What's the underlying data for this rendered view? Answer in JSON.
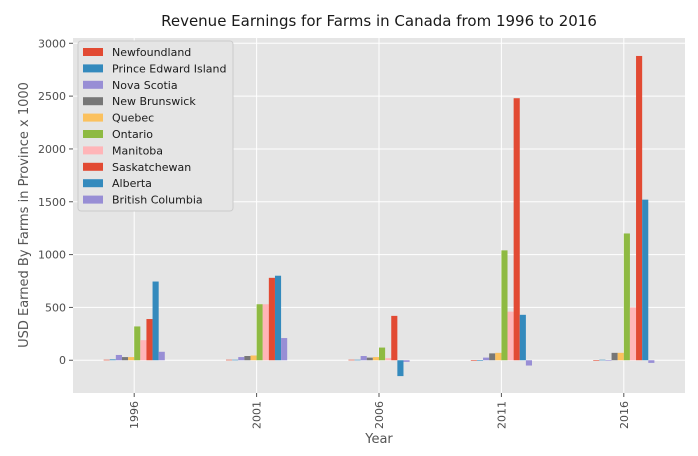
{
  "chart_data": {
    "type": "bar",
    "title": "Revenue Earnings for Farms in Canada from 1996 to 2016",
    "xlabel": "Year",
    "ylabel": "USD Earned By Farms in Province x 1000",
    "categories": [
      "1996",
      "2001",
      "2006",
      "2011",
      "2016"
    ],
    "yticks": [
      0,
      500,
      1000,
      1500,
      2000,
      2500,
      3000
    ],
    "ylim": [
      -310,
      3050
    ],
    "grid": true,
    "legend_position": "top-left",
    "series": [
      {
        "name": "Newfoundland",
        "color": "#E24A33",
        "values": [
          5,
          5,
          5,
          0,
          0
        ]
      },
      {
        "name": "Prince Edward Island",
        "color": "#348ABD",
        "values": [
          8,
          5,
          5,
          0,
          5
        ]
      },
      {
        "name": "Nova Scotia",
        "color": "#988ED5",
        "values": [
          50,
          30,
          40,
          25,
          0
        ]
      },
      {
        "name": "New Brunswick",
        "color": "#777777",
        "values": [
          30,
          40,
          25,
          65,
          70
        ]
      },
      {
        "name": "Quebec",
        "color": "#FBC15E",
        "values": [
          30,
          45,
          30,
          70,
          70
        ]
      },
      {
        "name": "Ontario",
        "color": "#8EBA42",
        "values": [
          320,
          530,
          120,
          1040,
          1200
        ]
      },
      {
        "name": "Manitoba",
        "color": "#FFB5B8",
        "values": [
          190,
          530,
          20,
          460,
          500
        ]
      },
      {
        "name": "Saskatchewan",
        "color": "#E24A33",
        "values": [
          390,
          780,
          420,
          2480,
          2880
        ]
      },
      {
        "name": "Alberta",
        "color": "#348ABD",
        "values": [
          745,
          800,
          -150,
          430,
          1520
        ]
      },
      {
        "name": "British Columbia",
        "color": "#988ED5",
        "values": [
          80,
          210,
          -15,
          -50,
          -25
        ]
      }
    ]
  }
}
